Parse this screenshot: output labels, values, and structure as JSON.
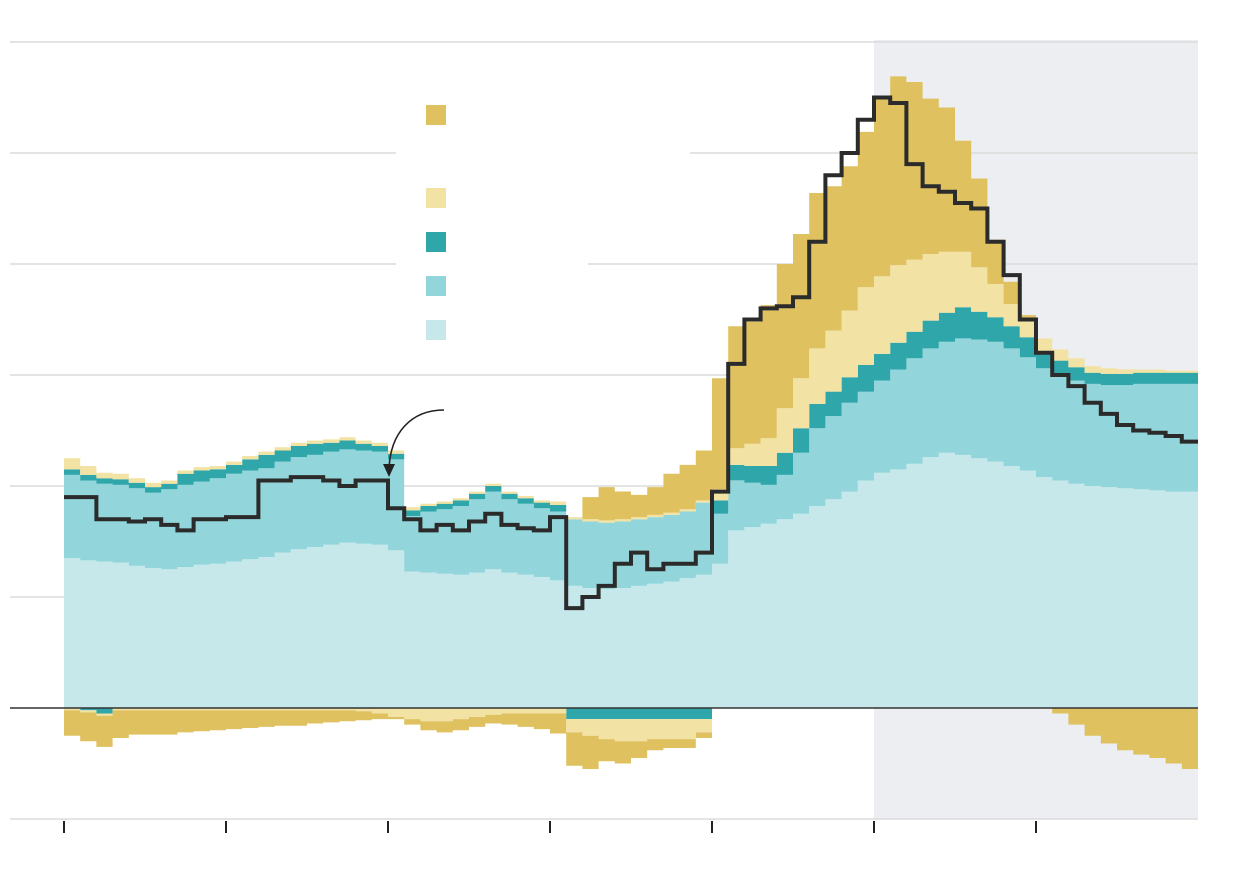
{
  "chart_data": {
    "type": "area",
    "stacked": true,
    "step": true,
    "title": "",
    "xlabel": "",
    "ylabel": "",
    "x_range": [
      0,
      70
    ],
    "ylim": [
      -1.0,
      6.0
    ],
    "gridlines_y": [
      -1,
      1,
      2,
      3,
      4,
      5,
      6
    ],
    "zero_line": 0,
    "x_ticks": [
      0,
      10,
      20,
      30,
      40,
      50,
      60
    ],
    "x_tick_labels": [
      "",
      "",
      "",
      "",
      "",
      "",
      ""
    ],
    "shaded_region": {
      "x0": 50,
      "x1": 70,
      "color": "#c9ced6"
    },
    "legend": {
      "placement": "top-center",
      "entries": [
        "",
        "",
        "",
        "",
        ""
      ]
    },
    "annotation": {
      "text": "",
      "x": 20,
      "y": 2.05
    },
    "series": [
      {
        "key": "s1",
        "color": "#c6e8ea",
        "values": [
          1.35,
          1.33,
          1.32,
          1.31,
          1.28,
          1.26,
          1.25,
          1.27,
          1.29,
          1.3,
          1.32,
          1.34,
          1.36,
          1.4,
          1.43,
          1.45,
          1.47,
          1.49,
          1.48,
          1.47,
          1.42,
          1.23,
          1.22,
          1.21,
          1.2,
          1.22,
          1.25,
          1.22,
          1.2,
          1.18,
          1.15,
          1.1,
          1.08,
          1.07,
          1.08,
          1.1,
          1.12,
          1.14,
          1.17,
          1.2,
          1.3,
          1.6,
          1.63,
          1.66,
          1.7,
          1.75,
          1.82,
          1.88,
          1.95,
          2.05,
          2.12,
          2.15,
          2.2,
          2.26,
          2.3,
          2.28,
          2.25,
          2.22,
          2.18,
          2.14,
          2.08,
          2.05,
          2.02,
          2.0,
          1.99,
          1.98,
          1.97,
          1.96,
          1.95,
          1.95
        ]
      },
      {
        "key": "s2",
        "color": "#92d6db",
        "values": [
          0.75,
          0.72,
          0.7,
          0.7,
          0.7,
          0.68,
          0.72,
          0.74,
          0.75,
          0.77,
          0.79,
          0.8,
          0.8,
          0.82,
          0.83,
          0.83,
          0.84,
          0.84,
          0.84,
          0.84,
          0.82,
          0.5,
          0.55,
          0.58,
          0.62,
          0.66,
          0.7,
          0.66,
          0.64,
          0.62,
          0.62,
          0.6,
          0.6,
          0.6,
          0.6,
          0.6,
          0.6,
          0.6,
          0.6,
          0.65,
          0.45,
          0.45,
          0.4,
          0.35,
          0.4,
          0.55,
          0.7,
          0.75,
          0.8,
          0.8,
          0.83,
          0.9,
          0.95,
          0.98,
          1.0,
          1.05,
          1.07,
          1.08,
          1.06,
          1.02,
          0.98,
          0.95,
          0.93,
          0.92,
          0.92,
          0.93,
          0.95,
          0.96,
          0.97,
          0.97
        ]
      },
      {
        "key": "s3",
        "color": "#2fa6aa",
        "values": [
          0.05,
          0.05,
          0.05,
          0.05,
          0.05,
          0.05,
          0.05,
          0.1,
          0.1,
          0.08,
          0.08,
          0.1,
          0.12,
          0.1,
          0.1,
          0.1,
          0.08,
          0.08,
          0.06,
          0.05,
          0.05,
          0.05,
          0.05,
          0.05,
          0.05,
          0.05,
          0.05,
          0.05,
          0.05,
          0.05,
          0.06,
          0.0,
          0.0,
          0.0,
          0.0,
          0.0,
          0.0,
          0.0,
          0.0,
          0.0,
          0.12,
          0.14,
          0.15,
          0.17,
          0.2,
          0.22,
          0.22,
          0.22,
          0.23,
          0.24,
          0.24,
          0.24,
          0.24,
          0.25,
          0.26,
          0.28,
          0.25,
          0.22,
          0.2,
          0.18,
          0.15,
          0.13,
          0.12,
          0.1,
          0.1,
          0.1,
          0.1,
          0.1,
          0.1,
          0.1
        ]
      },
      {
        "key": "s4",
        "color": "#f2e3a4",
        "values": [
          0.1,
          0.08,
          0.05,
          0.05,
          0.04,
          0.04,
          0.03,
          0.03,
          0.03,
          0.03,
          0.03,
          0.03,
          0.03,
          0.03,
          0.03,
          0.03,
          0.03,
          0.03,
          0.03,
          0.03,
          0.03,
          0.03,
          0.02,
          0.02,
          0.02,
          0.02,
          0.02,
          0.02,
          0.02,
          0.02,
          0.03,
          0.02,
          0.02,
          0.02,
          0.02,
          0.02,
          0.02,
          0.02,
          0.02,
          0.02,
          0.1,
          0.15,
          0.2,
          0.25,
          0.4,
          0.45,
          0.5,
          0.55,
          0.6,
          0.7,
          0.7,
          0.7,
          0.65,
          0.6,
          0.55,
          0.5,
          0.4,
          0.3,
          0.2,
          0.15,
          0.12,
          0.1,
          0.08,
          0.06,
          0.05,
          0.04,
          0.03,
          0.03,
          0.02,
          0.02
        ]
      },
      {
        "key": "s5",
        "color": "#dfc160",
        "values": [
          0.0,
          0.0,
          0.0,
          0.0,
          0.0,
          0.0,
          0.0,
          0.0,
          0.0,
          0.0,
          0.0,
          0.0,
          0.0,
          0.0,
          0.0,
          0.0,
          0.0,
          0.0,
          0.0,
          0.0,
          0.0,
          0.0,
          0.0,
          0.0,
          0.0,
          0.0,
          0.0,
          0.0,
          0.0,
          0.0,
          0.0,
          0.0,
          0.2,
          0.3,
          0.25,
          0.2,
          0.25,
          0.35,
          0.4,
          0.45,
          1.0,
          1.1,
          1.1,
          1.2,
          1.3,
          1.3,
          1.4,
          1.3,
          1.3,
          1.4,
          1.6,
          1.7,
          1.6,
          1.4,
          1.3,
          1.0,
          0.8,
          0.4,
          0.2,
          0.05,
          0.0,
          0.0,
          0.0,
          0.0,
          0.0,
          0.0,
          0.0,
          0.0,
          0.0,
          0.0
        ]
      }
    ],
    "negative_series": [
      {
        "key": "s3",
        "color": "#2fa6aa",
        "values": [
          0,
          -0.02,
          -0.05,
          0,
          0,
          0,
          0,
          0,
          0,
          0,
          0,
          0,
          0,
          0,
          0,
          0,
          0,
          0,
          0,
          0,
          0,
          0,
          0,
          0,
          0,
          0,
          0,
          0,
          0,
          0,
          0,
          -0.1,
          -0.1,
          -0.1,
          -0.1,
          -0.1,
          -0.1,
          -0.1,
          -0.1,
          -0.1,
          0,
          0,
          0,
          0,
          0,
          0,
          0,
          0,
          0,
          0,
          0,
          0,
          0,
          0,
          0,
          0,
          0,
          0,
          0,
          0,
          0,
          0,
          0,
          0,
          0,
          0,
          0,
          0,
          0,
          0
        ]
      },
      {
        "key": "s4",
        "color": "#f2e3a4",
        "values": [
          -0.02,
          -0.02,
          -0.02,
          -0.02,
          -0.02,
          -0.02,
          -0.02,
          -0.02,
          -0.02,
          -0.02,
          -0.02,
          -0.02,
          -0.02,
          -0.02,
          -0.02,
          -0.02,
          -0.02,
          -0.02,
          -0.03,
          -0.05,
          -0.08,
          -0.1,
          -0.12,
          -0.12,
          -0.1,
          -0.08,
          -0.06,
          -0.05,
          -0.05,
          -0.05,
          -0.05,
          -0.12,
          -0.15,
          -0.18,
          -0.2,
          -0.2,
          -0.18,
          -0.18,
          -0.18,
          -0.12,
          0,
          0,
          0,
          0,
          0,
          0,
          0,
          0,
          0,
          0,
          0,
          0,
          0,
          0,
          0,
          0,
          0,
          0,
          0,
          0,
          0,
          0,
          0,
          0,
          0,
          0,
          0,
          0,
          0,
          0
        ]
      },
      {
        "key": "s5",
        "color": "#dfc160",
        "values": [
          -0.23,
          -0.26,
          -0.28,
          -0.25,
          -0.22,
          -0.22,
          -0.22,
          -0.2,
          -0.19,
          -0.18,
          -0.17,
          -0.16,
          -0.15,
          -0.14,
          -0.14,
          -0.12,
          -0.11,
          -0.1,
          -0.08,
          -0.05,
          -0.02,
          -0.05,
          -0.08,
          -0.1,
          -0.1,
          -0.09,
          -0.08,
          -0.1,
          -0.12,
          -0.14,
          -0.18,
          -0.3,
          -0.3,
          -0.2,
          -0.2,
          -0.15,
          -0.1,
          -0.08,
          -0.08,
          -0.05,
          0,
          0,
          0,
          0,
          0,
          0,
          0,
          0,
          0,
          0,
          0,
          0,
          0,
          0,
          0,
          0,
          0,
          0,
          0,
          0,
          0,
          -0.05,
          -0.15,
          -0.25,
          -0.32,
          -0.38,
          -0.42,
          -0.45,
          -0.5,
          -0.55
        ]
      }
    ],
    "total_line": {
      "color": "#2b2b2b",
      "values": [
        1.9,
        1.9,
        1.7,
        1.7,
        1.68,
        1.7,
        1.65,
        1.6,
        1.7,
        1.7,
        1.72,
        1.72,
        2.05,
        2.05,
        2.08,
        2.08,
        2.05,
        2.0,
        2.05,
        2.05,
        1.8,
        1.7,
        1.6,
        1.65,
        1.6,
        1.68,
        1.75,
        1.65,
        1.62,
        1.6,
        1.72,
        0.9,
        1.0,
        1.1,
        1.3,
        1.4,
        1.25,
        1.3,
        1.3,
        1.4,
        1.95,
        3.1,
        3.5,
        3.6,
        3.62,
        3.7,
        4.2,
        4.8,
        5.0,
        5.3,
        5.5,
        5.45,
        4.9,
        4.7,
        4.65,
        4.55,
        4.5,
        4.2,
        3.9,
        3.5,
        3.2,
        3.0,
        2.9,
        2.75,
        2.65,
        2.55,
        2.5,
        2.48,
        2.45,
        2.4
      ]
    }
  }
}
